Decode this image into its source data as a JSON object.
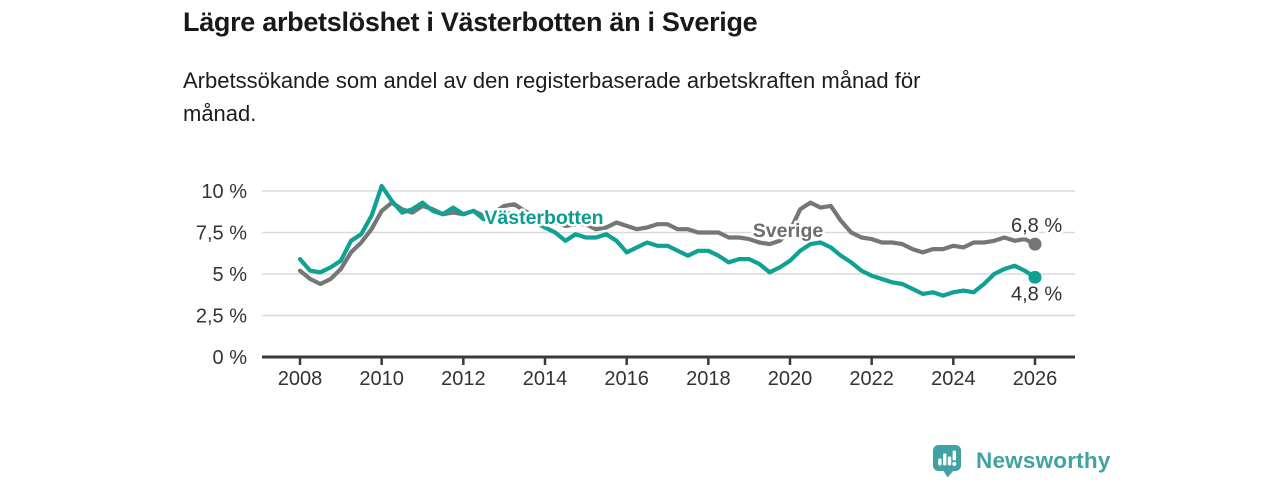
{
  "header": {
    "title": "Lägre arbetslöshet i Västerbotten än i Sverige",
    "subtitle": "Arbetssökande som andel av den registerbaserade arbetskraften månad för månad."
  },
  "chart_data": {
    "type": "line",
    "title": "Lägre arbetslöshet i Västerbotten än i Sverige",
    "xlabel": "",
    "ylabel": "",
    "x_unit": "year (quarterly samples of monthly series)",
    "x_start": 2008,
    "x_step": 0.25,
    "x_end": 2026,
    "xlim": [
      2007.1,
      2027
    ],
    "ylim": [
      0,
      10.8
    ],
    "grid": "horizontal",
    "legend_position": "inline-labels",
    "x_ticks": [
      2008,
      2010,
      2012,
      2014,
      2016,
      2018,
      2020,
      2022,
      2024,
      2026
    ],
    "y_ticks": [
      {
        "value": 10,
        "label": "10 %"
      },
      {
        "value": 7.5,
        "label": "7,5 %"
      },
      {
        "value": 5,
        "label": "5 %"
      },
      {
        "value": 2.5,
        "label": "2,5 %"
      },
      {
        "value": 0,
        "label": "0 %"
      }
    ],
    "series": [
      {
        "name": "Sverige",
        "color": "#767676",
        "label_color": "#6d6d6d",
        "end_label": "6,8 %",
        "end_value": 6.8,
        "values": [
          5.2,
          4.7,
          4.4,
          4.7,
          5.3,
          6.3,
          6.9,
          7.7,
          8.8,
          9.3,
          8.9,
          8.7,
          9.1,
          8.9,
          8.6,
          8.7,
          8.6,
          8.8,
          8.5,
          8.7,
          9.1,
          9.2,
          8.8,
          8.5,
          8.3,
          8.1,
          7.9,
          8.0,
          8.0,
          7.7,
          7.8,
          8.1,
          7.9,
          7.7,
          7.8,
          8.0,
          8.0,
          7.7,
          7.7,
          7.5,
          7.5,
          7.5,
          7.2,
          7.2,
          7.1,
          6.9,
          6.8,
          7.0,
          7.6,
          8.9,
          9.3,
          9.0,
          9.1,
          8.2,
          7.5,
          7.2,
          7.1,
          6.9,
          6.9,
          6.8,
          6.5,
          6.3,
          6.5,
          6.5,
          6.7,
          6.6,
          6.9,
          6.9,
          7.0,
          7.2,
          7.0,
          7.1,
          6.8
        ]
      },
      {
        "name": "Västerbotten",
        "color": "#0fa194",
        "label_color": "#0a9c90",
        "end_label": "4,8 %",
        "end_value": 4.8,
        "values": [
          5.9,
          5.2,
          5.1,
          5.4,
          5.8,
          7.0,
          7.4,
          8.5,
          10.3,
          9.4,
          8.7,
          8.9,
          9.3,
          8.8,
          8.6,
          9.0,
          8.6,
          8.8,
          8.3,
          8.4,
          8.7,
          8.6,
          8.4,
          8.1,
          7.8,
          7.5,
          7.0,
          7.4,
          7.2,
          7.2,
          7.4,
          7.0,
          6.3,
          6.6,
          6.9,
          6.7,
          6.7,
          6.4,
          6.1,
          6.4,
          6.4,
          6.1,
          5.7,
          5.9,
          5.9,
          5.6,
          5.1,
          5.4,
          5.8,
          6.4,
          6.8,
          6.9,
          6.6,
          6.1,
          5.7,
          5.2,
          4.9,
          4.7,
          4.5,
          4.4,
          4.1,
          3.8,
          3.9,
          3.7,
          3.9,
          4.0,
          3.9,
          4.4,
          5.0,
          5.3,
          5.5,
          5.2,
          4.8
        ]
      }
    ]
  },
  "footer": {
    "brand_name": "Newsworthy",
    "brand_color": "#3fa3a4",
    "logo_icon": "bar-chart-speech-bubble-icon"
  }
}
